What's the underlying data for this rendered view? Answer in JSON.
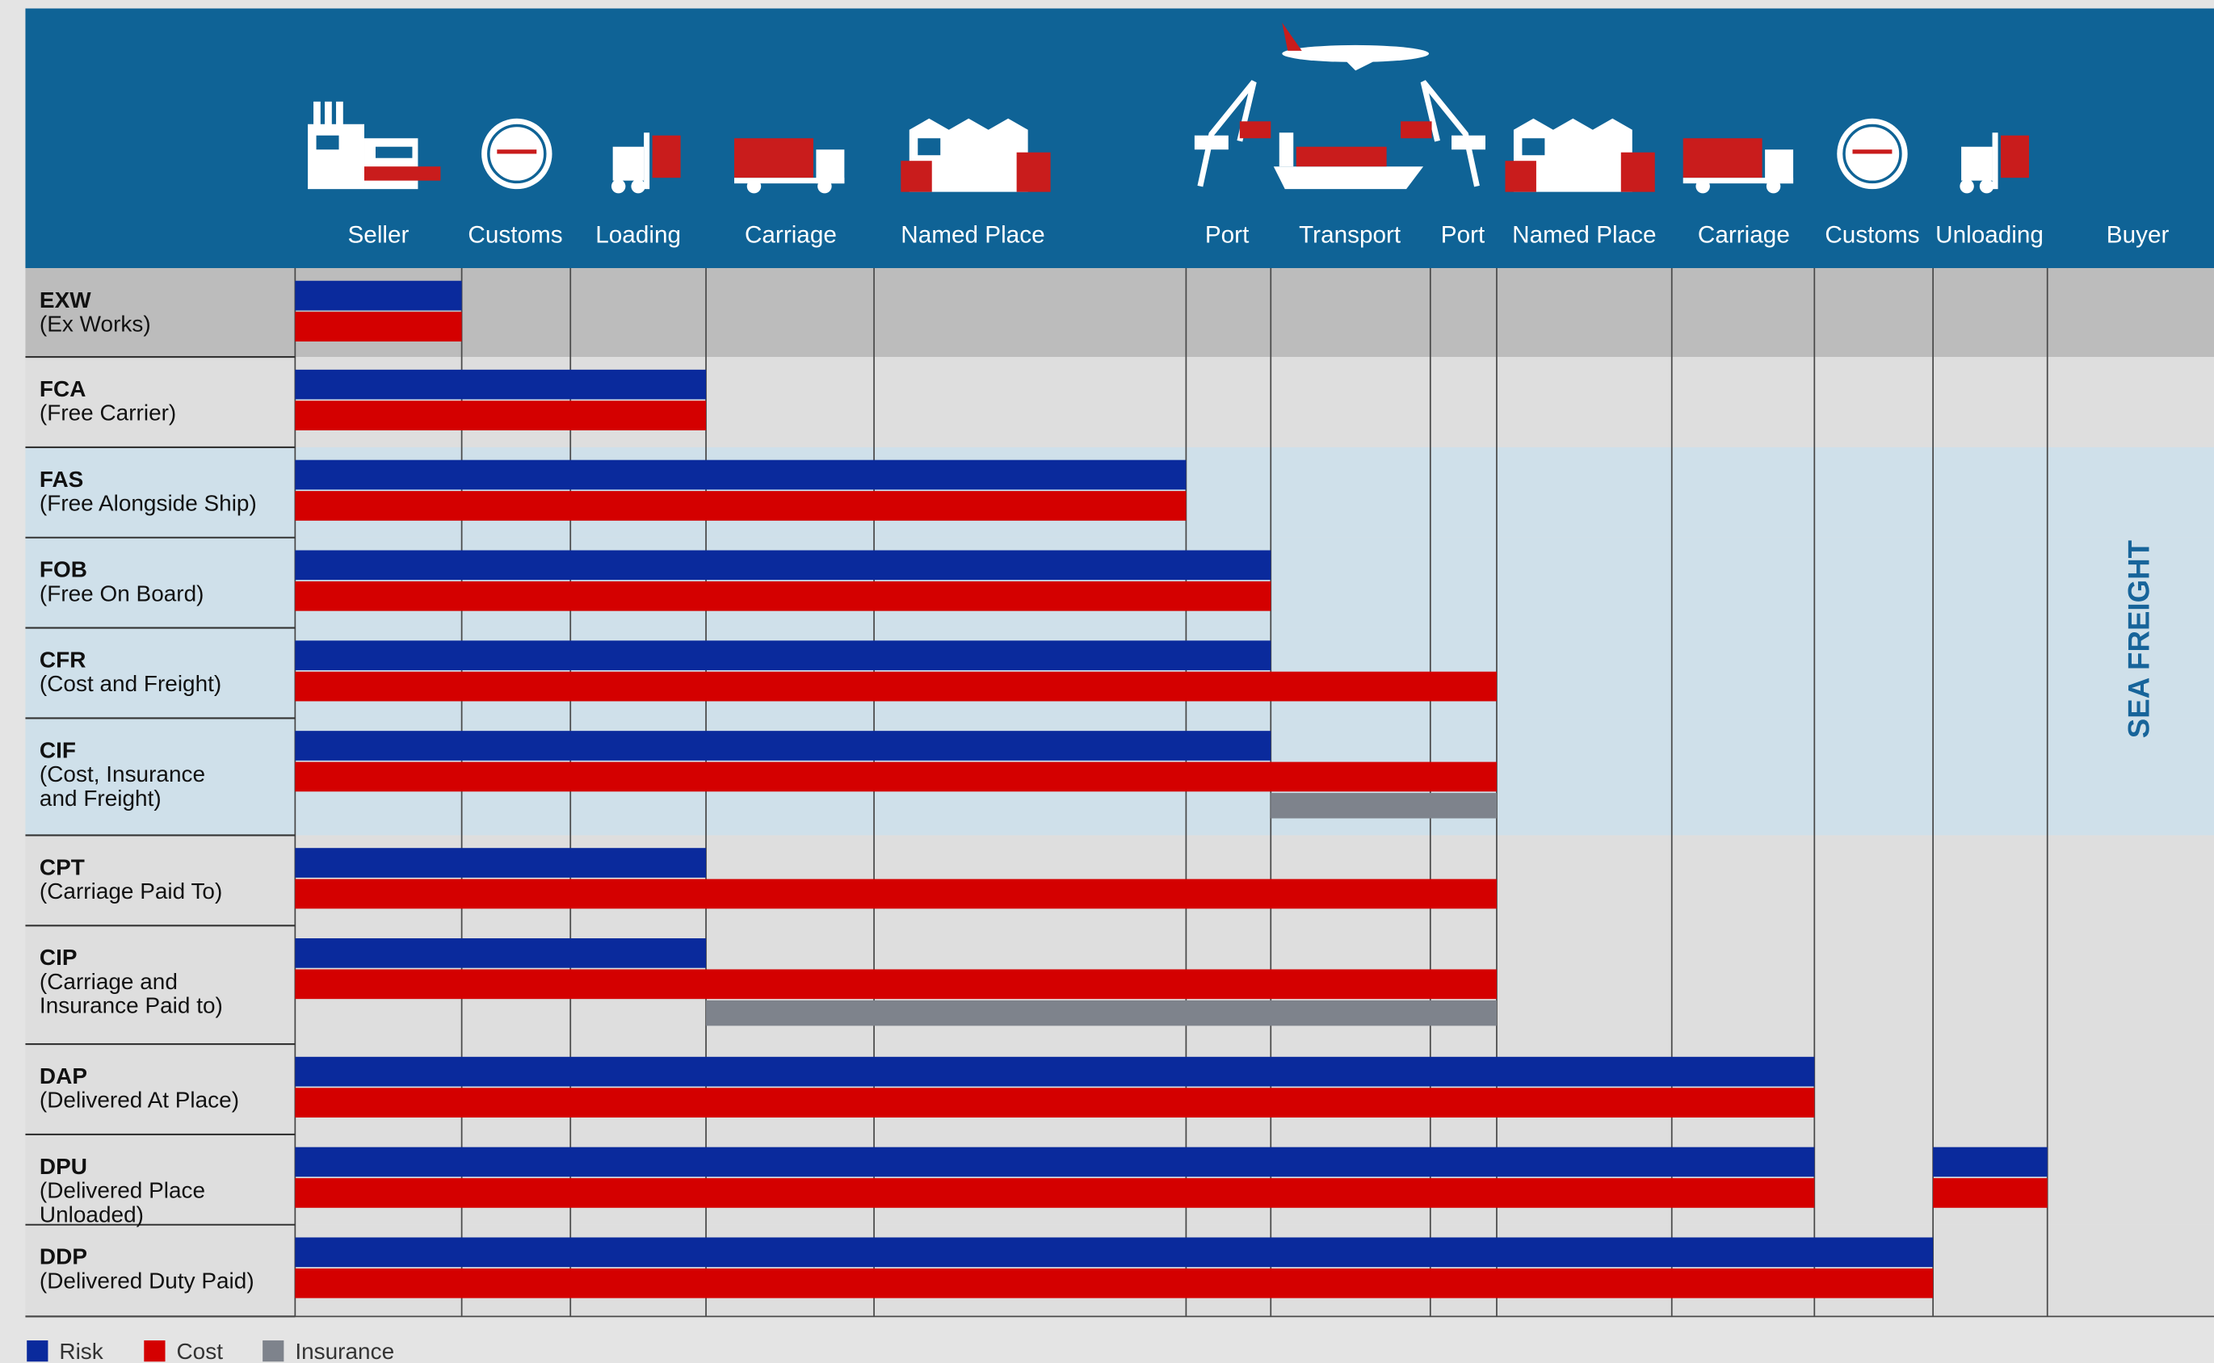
{
  "header": {
    "stages": [
      "Seller",
      "Customs",
      "Loading",
      "Carriage",
      "Named Place",
      "Port",
      "Transport",
      "Port",
      "Named Place",
      "Carriage",
      "Customs",
      "Unloading",
      "Buyer"
    ]
  },
  "rows": [
    {
      "code": "EXW",
      "name": [
        "(Ex Works)"
      ]
    },
    {
      "code": "FCA",
      "name": [
        "(Free Carrier)"
      ]
    },
    {
      "code": "FAS",
      "name": [
        "(Free Alongside Ship)"
      ]
    },
    {
      "code": "FOB",
      "name": [
        "(Free On Board)"
      ]
    },
    {
      "code": "CFR",
      "name": [
        "(Cost and Freight)"
      ]
    },
    {
      "code": "CIF",
      "name": [
        "(Cost, Insurance",
        " and Freight)"
      ]
    },
    {
      "code": "CPT",
      "name": [
        "(Carriage Paid To)"
      ]
    },
    {
      "code": "CIP",
      "name": [
        "(Carriage and",
        " Insurance Paid to)"
      ]
    },
    {
      "code": "DAP",
      "name": [
        "(Delivered At Place)"
      ]
    },
    {
      "code": "DPU",
      "name": [
        "(Delivered Place",
        "Unloaded)"
      ]
    },
    {
      "code": "DDP",
      "name": [
        "(Delivered Duty Paid)"
      ]
    }
  ],
  "side_label": "SEA FREIGHT",
  "legend": [
    "Risk",
    "Cost",
    "Insurance"
  ]
}
